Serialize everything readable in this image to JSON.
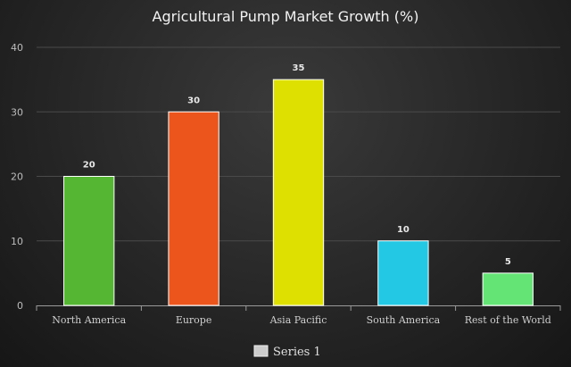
{
  "chart_data": {
    "type": "bar",
    "title": "Agricultural Pump Market Growth (%)",
    "categories": [
      "North America",
      "Europe",
      "Asia Pacific",
      "South America",
      "Rest of the World"
    ],
    "series": [
      {
        "name": "Series 1",
        "values": [
          20,
          30,
          35,
          10,
          5
        ],
        "colors": [
          "#55b633",
          "#ec561c",
          "#dde000",
          "#23c9e4",
          "#63e475"
        ]
      }
    ],
    "ylim": [
      0,
      40
    ],
    "yticks": [
      0,
      10,
      20,
      30,
      40
    ],
    "grid": true,
    "legend_position": "bottom",
    "legend_swatch_color": "#cccccc"
  }
}
